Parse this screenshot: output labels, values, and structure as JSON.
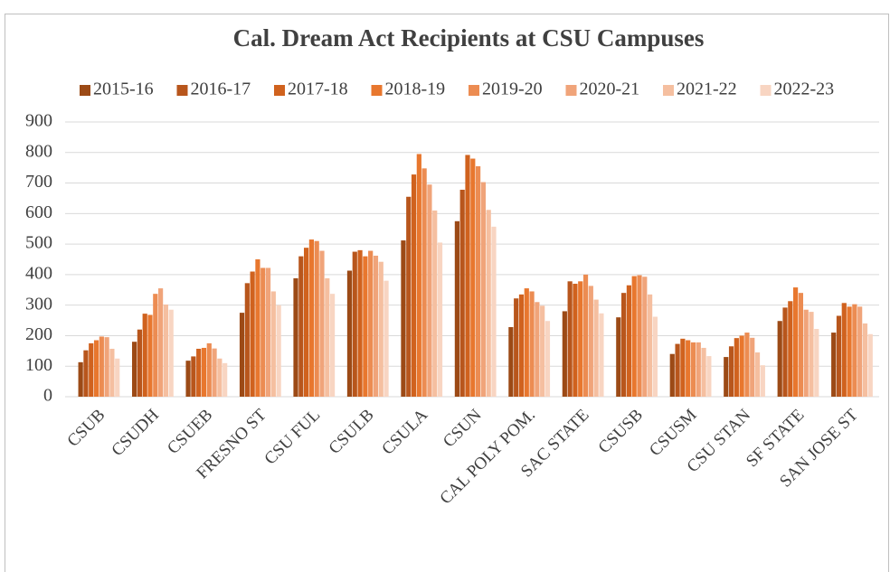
{
  "chart_data": {
    "type": "bar",
    "title": "Cal. Dream Act Recipients at CSU Campuses",
    "categories": [
      "CSUB",
      "CSUDH",
      "CSUEB",
      "FRESNO ST",
      "CSU FUL",
      "CSULB",
      "CSULA",
      "CSUN",
      "CAL POLY POM.",
      "SAC STATE",
      "CSUSB",
      "CSUSM",
      "CSU STAN",
      "SF STATE",
      "SAN JOSE ST"
    ],
    "series": [
      {
        "name": "2015-16",
        "color": "#9c4a16",
        "values": [
          113,
          180,
          118,
          275,
          388,
          413,
          512,
          575,
          228,
          280,
          260,
          140,
          130,
          248,
          210
        ]
      },
      {
        "name": "2016-17",
        "color": "#b8561c",
        "values": [
          152,
          220,
          132,
          372,
          460,
          475,
          655,
          678,
          322,
          378,
          340,
          173,
          165,
          292,
          265
        ]
      },
      {
        "name": "2017-18",
        "color": "#d0621e",
        "values": [
          175,
          272,
          157,
          410,
          488,
          480,
          728,
          792,
          335,
          370,
          365,
          190,
          192,
          313,
          307
        ]
      },
      {
        "name": "2018-19",
        "color": "#e8772e",
        "values": [
          185,
          268,
          160,
          450,
          515,
          460,
          795,
          780,
          355,
          378,
          395,
          185,
          200,
          358,
          295
        ]
      },
      {
        "name": "2019-20",
        "color": "#ec8c52",
        "values": [
          197,
          337,
          175,
          422,
          510,
          478,
          748,
          755,
          345,
          400,
          398,
          178,
          210,
          340,
          303
        ]
      },
      {
        "name": "2020-21",
        "color": "#f0a47a",
        "values": [
          195,
          355,
          158,
          422,
          478,
          462,
          695,
          703,
          310,
          363,
          393,
          178,
          193,
          285,
          295
        ]
      },
      {
        "name": "2021-22",
        "color": "#f5bfa0",
        "values": [
          157,
          302,
          125,
          345,
          388,
          442,
          610,
          612,
          298,
          318,
          335,
          160,
          145,
          278,
          240
        ]
      },
      {
        "name": "2022-23",
        "color": "#f8d5c2",
        "values": [
          125,
          285,
          110,
          300,
          337,
          380,
          505,
          557,
          248,
          273,
          262,
          133,
          103,
          222,
          205
        ]
      }
    ],
    "ylim": [
      0,
      900
    ],
    "yticks": [
      0,
      100,
      200,
      300,
      400,
      500,
      600,
      700,
      800,
      900
    ],
    "grid": true,
    "legend": "top"
  }
}
